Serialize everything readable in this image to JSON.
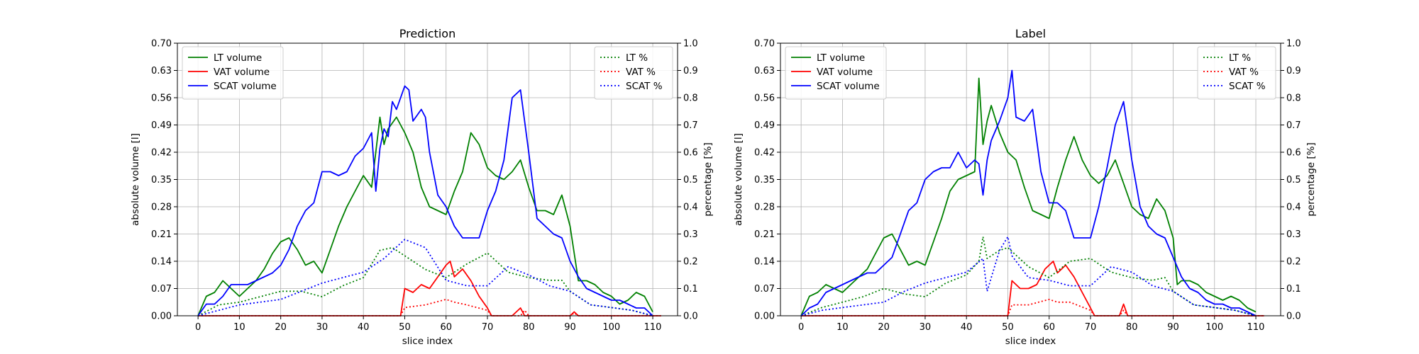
{
  "chart_data": [
    {
      "type": "line",
      "title": "Prediction",
      "xlabel": "slice index",
      "ylabel": "absolute volume [l]",
      "y2label": "percentage [%]",
      "xlim": [
        -5,
        116
      ],
      "xticks": [
        0,
        10,
        20,
        30,
        40,
        50,
        60,
        70,
        80,
        90,
        100,
        110
      ],
      "ylim": [
        0,
        0.7
      ],
      "yticks": [
        "0.00",
        "0.07",
        "0.14",
        "0.21",
        "0.28",
        "0.35",
        "0.42",
        "0.49",
        "0.56",
        "0.63",
        "0.70"
      ],
      "y2lim": [
        0,
        1.0
      ],
      "y2ticks": [
        "0.0",
        "0.1",
        "0.2",
        "0.3",
        "0.4",
        "0.5",
        "0.6",
        "0.7",
        "0.8",
        "0.9",
        "1.0"
      ],
      "grid": true,
      "legend_left": "top-left",
      "legend_right": "top-right",
      "series": [
        {
          "name": "LT volume",
          "axis": "left",
          "style": "solid",
          "color": "#008000",
          "x": [
            0,
            2,
            4,
            6,
            8,
            10,
            12,
            14,
            16,
            18,
            20,
            22,
            24,
            26,
            28,
            30,
            32,
            34,
            36,
            38,
            40,
            42,
            44,
            45,
            46,
            48,
            50,
            52,
            54,
            56,
            58,
            60,
            62,
            64,
            66,
            68,
            70,
            72,
            74,
            76,
            78,
            80,
            82,
            84,
            86,
            88,
            90,
            92,
            94,
            96,
            98,
            100,
            102,
            104,
            106,
            108,
            110
          ],
          "y": [
            0.0,
            0.05,
            0.06,
            0.09,
            0.07,
            0.05,
            0.07,
            0.09,
            0.12,
            0.16,
            0.19,
            0.2,
            0.17,
            0.13,
            0.14,
            0.11,
            0.17,
            0.23,
            0.28,
            0.32,
            0.36,
            0.33,
            0.51,
            0.44,
            0.48,
            0.51,
            0.47,
            0.42,
            0.33,
            0.28,
            0.27,
            0.26,
            0.32,
            0.37,
            0.47,
            0.44,
            0.38,
            0.36,
            0.35,
            0.37,
            0.4,
            0.33,
            0.27,
            0.27,
            0.26,
            0.31,
            0.23,
            0.09,
            0.09,
            0.08,
            0.06,
            0.05,
            0.03,
            0.04,
            0.06,
            0.05,
            0.01
          ]
        },
        {
          "name": "VAT volume",
          "axis": "left",
          "style": "solid",
          "color": "#ff0000",
          "x": [
            0,
            49,
            50,
            52,
            54,
            56,
            58,
            60,
            61,
            62,
            64,
            66,
            68,
            70,
            71,
            72,
            76,
            78,
            79,
            80,
            90,
            91,
            92,
            112
          ],
          "y": [
            0.0,
            0.0,
            0.07,
            0.06,
            0.08,
            0.07,
            0.1,
            0.13,
            0.14,
            0.1,
            0.12,
            0.09,
            0.05,
            0.02,
            0.0,
            0.0,
            0.0,
            0.02,
            0.0,
            0.0,
            0.0,
            0.01,
            0.0,
            0.0
          ]
        },
        {
          "name": "SCAT volume",
          "axis": "left",
          "style": "solid",
          "color": "#0000ff",
          "x": [
            0,
            2,
            4,
            6,
            8,
            10,
            12,
            14,
            16,
            18,
            20,
            22,
            24,
            26,
            28,
            30,
            32,
            34,
            36,
            38,
            40,
            42,
            43,
            44,
            45,
            46,
            47,
            48,
            50,
            51,
            52,
            54,
            55,
            56,
            58,
            60,
            62,
            64,
            66,
            68,
            70,
            72,
            74,
            76,
            78,
            80,
            82,
            84,
            86,
            88,
            90,
            92,
            94,
            96,
            98,
            100,
            102,
            104,
            106,
            108,
            110
          ],
          "y": [
            0.0,
            0.03,
            0.03,
            0.05,
            0.08,
            0.08,
            0.08,
            0.09,
            0.1,
            0.11,
            0.13,
            0.17,
            0.23,
            0.27,
            0.29,
            0.37,
            0.37,
            0.36,
            0.37,
            0.41,
            0.43,
            0.47,
            0.32,
            0.43,
            0.48,
            0.46,
            0.55,
            0.53,
            0.59,
            0.58,
            0.5,
            0.53,
            0.51,
            0.42,
            0.31,
            0.28,
            0.23,
            0.2,
            0.2,
            0.2,
            0.27,
            0.32,
            0.4,
            0.56,
            0.58,
            0.42,
            0.25,
            0.23,
            0.21,
            0.2,
            0.14,
            0.1,
            0.07,
            0.06,
            0.05,
            0.04,
            0.04,
            0.03,
            0.02,
            0.02,
            0.0
          ]
        },
        {
          "name": "LT %",
          "axis": "right",
          "style": "dotted",
          "color": "#008000",
          "x": [
            0,
            5,
            10,
            15,
            20,
            25,
            30,
            35,
            40,
            44,
            47,
            50,
            55,
            60,
            65,
            70,
            75,
            80,
            85,
            88,
            90,
            95,
            100,
            105,
            110
          ],
          "y": [
            0.0,
            0.04,
            0.05,
            0.07,
            0.09,
            0.09,
            0.07,
            0.11,
            0.14,
            0.24,
            0.25,
            0.22,
            0.17,
            0.14,
            0.19,
            0.23,
            0.16,
            0.14,
            0.13,
            0.13,
            0.09,
            0.04,
            0.03,
            0.02,
            0.0
          ]
        },
        {
          "name": "VAT %",
          "axis": "right",
          "style": "dotted",
          "color": "#ff0000",
          "x": [
            0,
            49,
            50,
            55,
            60,
            62,
            65,
            70,
            71,
            78,
            79,
            80,
            90,
            91,
            92,
            112
          ],
          "y": [
            0.0,
            0.0,
            0.03,
            0.04,
            0.06,
            0.05,
            0.04,
            0.02,
            0.0,
            0.0,
            0.02,
            0.0,
            0.0,
            0.01,
            0.0,
            0.0
          ]
        },
        {
          "name": "SCAT %",
          "axis": "right",
          "style": "dotted",
          "color": "#0000ff",
          "x": [
            0,
            5,
            10,
            15,
            20,
            25,
            30,
            35,
            40,
            45,
            50,
            55,
            60,
            65,
            70,
            75,
            80,
            85,
            90,
            95,
            100,
            105,
            110
          ],
          "y": [
            0.0,
            0.02,
            0.04,
            0.05,
            0.06,
            0.09,
            0.12,
            0.14,
            0.16,
            0.21,
            0.28,
            0.25,
            0.13,
            0.11,
            0.11,
            0.18,
            0.15,
            0.11,
            0.09,
            0.04,
            0.03,
            0.02,
            0.0
          ]
        }
      ]
    },
    {
      "type": "line",
      "title": "Label",
      "xlabel": "slice index",
      "ylabel": "absolute volume [l]",
      "y2label": "percentage [%]",
      "xlim": [
        -5,
        116
      ],
      "xticks": [
        0,
        10,
        20,
        30,
        40,
        50,
        60,
        70,
        80,
        90,
        100,
        110
      ],
      "ylim": [
        0,
        0.7
      ],
      "yticks": [
        "0.00",
        "0.07",
        "0.14",
        "0.21",
        "0.28",
        "0.35",
        "0.42",
        "0.49",
        "0.56",
        "0.63",
        "0.70"
      ],
      "y2lim": [
        0,
        1.0
      ],
      "y2ticks": [
        "0.0",
        "0.1",
        "0.2",
        "0.3",
        "0.4",
        "0.5",
        "0.6",
        "0.7",
        "0.8",
        "0.9",
        "1.0"
      ],
      "grid": true,
      "legend_left": "top-left",
      "legend_right": "top-right",
      "series": [
        {
          "name": "LT volume",
          "axis": "left",
          "style": "solid",
          "color": "#008000",
          "x": [
            0,
            2,
            4,
            6,
            8,
            10,
            12,
            14,
            16,
            18,
            20,
            22,
            24,
            26,
            28,
            30,
            32,
            34,
            36,
            38,
            40,
            42,
            43,
            44,
            45,
            46,
            48,
            50,
            52,
            54,
            56,
            58,
            60,
            62,
            64,
            66,
            68,
            70,
            72,
            74,
            76,
            78,
            80,
            82,
            84,
            86,
            88,
            90,
            91,
            92,
            94,
            96,
            98,
            100,
            102,
            104,
            106,
            108,
            110
          ],
          "y": [
            0.0,
            0.05,
            0.06,
            0.08,
            0.07,
            0.06,
            0.08,
            0.1,
            0.12,
            0.16,
            0.2,
            0.21,
            0.17,
            0.13,
            0.14,
            0.13,
            0.19,
            0.25,
            0.32,
            0.35,
            0.36,
            0.37,
            0.61,
            0.44,
            0.5,
            0.54,
            0.47,
            0.42,
            0.4,
            0.33,
            0.27,
            0.26,
            0.25,
            0.33,
            0.4,
            0.46,
            0.4,
            0.36,
            0.34,
            0.36,
            0.4,
            0.34,
            0.28,
            0.26,
            0.25,
            0.3,
            0.27,
            0.2,
            0.08,
            0.09,
            0.09,
            0.08,
            0.06,
            0.05,
            0.04,
            0.05,
            0.04,
            0.02,
            0.01
          ]
        },
        {
          "name": "VAT volume",
          "axis": "left",
          "style": "solid",
          "color": "#ff0000",
          "x": [
            0,
            50,
            51,
            53,
            55,
            57,
            59,
            61,
            62,
            64,
            66,
            68,
            70,
            71,
            77,
            78,
            79,
            112
          ],
          "y": [
            0.0,
            0.0,
            0.09,
            0.07,
            0.07,
            0.08,
            0.12,
            0.14,
            0.11,
            0.13,
            0.1,
            0.06,
            0.02,
            0.0,
            0.0,
            0.03,
            0.0,
            0.0
          ]
        },
        {
          "name": "SCAT volume",
          "axis": "left",
          "style": "solid",
          "color": "#0000ff",
          "x": [
            0,
            2,
            4,
            6,
            8,
            10,
            12,
            14,
            16,
            18,
            20,
            22,
            24,
            26,
            28,
            30,
            32,
            34,
            36,
            38,
            40,
            42,
            43,
            44,
            45,
            46,
            48,
            50,
            51,
            52,
            54,
            56,
            58,
            60,
            62,
            64,
            66,
            68,
            70,
            72,
            74,
            76,
            78,
            80,
            82,
            84,
            86,
            88,
            90,
            92,
            94,
            96,
            98,
            100,
            102,
            104,
            106,
            108,
            110
          ],
          "y": [
            0.0,
            0.02,
            0.03,
            0.06,
            0.07,
            0.08,
            0.09,
            0.1,
            0.11,
            0.11,
            0.13,
            0.15,
            0.21,
            0.27,
            0.29,
            0.35,
            0.37,
            0.38,
            0.38,
            0.42,
            0.38,
            0.4,
            0.39,
            0.31,
            0.4,
            0.45,
            0.5,
            0.56,
            0.63,
            0.51,
            0.5,
            0.53,
            0.37,
            0.29,
            0.29,
            0.27,
            0.2,
            0.2,
            0.2,
            0.28,
            0.38,
            0.49,
            0.55,
            0.4,
            0.28,
            0.23,
            0.21,
            0.2,
            0.15,
            0.1,
            0.07,
            0.06,
            0.04,
            0.03,
            0.03,
            0.02,
            0.02,
            0.01,
            0.0
          ]
        },
        {
          "name": "LT %",
          "axis": "right",
          "style": "dotted",
          "color": "#008000",
          "x": [
            0,
            5,
            10,
            15,
            20,
            25,
            30,
            35,
            40,
            43,
            44,
            45,
            48,
            50,
            55,
            60,
            65,
            70,
            75,
            80,
            85,
            88,
            90,
            95,
            100,
            105,
            110
          ],
          "y": [
            0.0,
            0.03,
            0.05,
            0.07,
            0.1,
            0.08,
            0.07,
            0.12,
            0.15,
            0.2,
            0.29,
            0.21,
            0.24,
            0.25,
            0.18,
            0.14,
            0.2,
            0.21,
            0.16,
            0.14,
            0.13,
            0.14,
            0.09,
            0.04,
            0.03,
            0.02,
            0.0
          ]
        },
        {
          "name": "VAT %",
          "axis": "right",
          "style": "dotted",
          "color": "#ff0000",
          "x": [
            0,
            50,
            51,
            55,
            60,
            62,
            65,
            70,
            71,
            77,
            78,
            79,
            112
          ],
          "y": [
            0.0,
            0.0,
            0.04,
            0.04,
            0.06,
            0.05,
            0.05,
            0.02,
            0.0,
            0.0,
            0.02,
            0.0,
            0.0
          ]
        },
        {
          "name": "SCAT %",
          "axis": "right",
          "style": "dotted",
          "color": "#0000ff",
          "x": [
            0,
            5,
            10,
            15,
            20,
            25,
            30,
            35,
            40,
            44,
            45,
            48,
            50,
            51,
            55,
            60,
            65,
            70,
            75,
            80,
            85,
            90,
            95,
            100,
            105,
            110
          ],
          "y": [
            0.0,
            0.02,
            0.03,
            0.04,
            0.05,
            0.09,
            0.12,
            0.14,
            0.16,
            0.21,
            0.09,
            0.24,
            0.29,
            0.22,
            0.14,
            0.13,
            0.11,
            0.11,
            0.18,
            0.16,
            0.11,
            0.09,
            0.04,
            0.03,
            0.02,
            0.0
          ]
        }
      ]
    }
  ]
}
